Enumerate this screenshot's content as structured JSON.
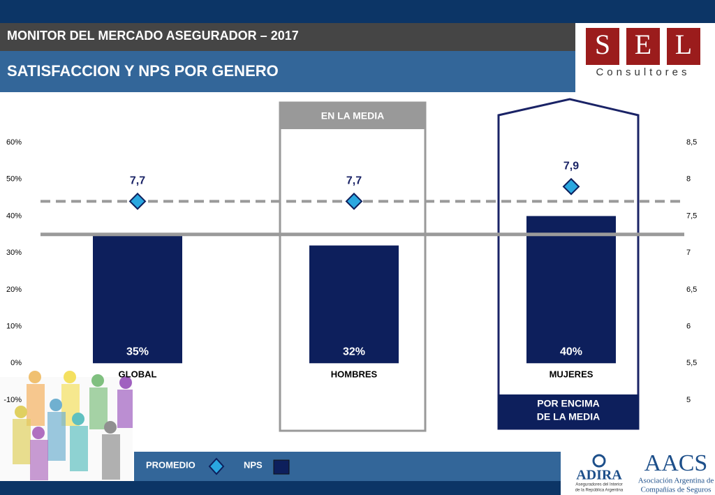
{
  "header": {
    "subtitle": "MONITOR DEL MERCADO ASEGURADOR – 2017",
    "title": "SATISFACCION Y NPS POR GENERO"
  },
  "logos": {
    "sel": {
      "letters": [
        "S",
        "E",
        "L"
      ],
      "text": "Consultores"
    },
    "adira": {
      "name": "ADIRA",
      "text": [
        "Aseguradores del Interior",
        "de la República Argentina"
      ]
    },
    "aacs": {
      "name": "AACS",
      "text": [
        "Asociación Argentina de",
        "Compañías de Seguros"
      ]
    }
  },
  "chart_data": {
    "type": "bar",
    "categories": [
      "GLOBAL",
      "HOMBRES",
      "MUJERES"
    ],
    "series": [
      {
        "name": "NPS",
        "color": "#0d1f5c",
        "values": [
          35,
          32,
          40
        ],
        "value_labels": [
          "35%",
          "32%",
          "40%"
        ]
      },
      {
        "name": "PROMEDIO",
        "type": "scatter",
        "marker": "diamond",
        "color": "#2aa7e0",
        "axis": "y2",
        "values": [
          7.7,
          7.7,
          7.9
        ],
        "value_labels": [
          "7,7",
          "7,7",
          "7,9"
        ]
      }
    ],
    "ylim": [
      -10,
      60
    ],
    "yticks": [
      {
        "value": -10,
        "label": "-10%"
      },
      {
        "value": 0,
        "label": "0%"
      },
      {
        "value": 10,
        "label": "10%"
      },
      {
        "value": 20,
        "label": "20%"
      },
      {
        "value": 30,
        "label": "30%"
      },
      {
        "value": 40,
        "label": "40%"
      },
      {
        "value": 50,
        "label": "50%"
      },
      {
        "value": 60,
        "label": "60%"
      }
    ],
    "y2lim": [
      5,
      8.5
    ],
    "y2ticks": [
      5,
      {
        "value": 5.5,
        "label": "5,5"
      },
      6,
      {
        "value": 6.5,
        "label": "6,5"
      },
      7,
      {
        "value": 7.5,
        "label": "7,5"
      },
      8,
      {
        "value": 8.5,
        "label": "8,5"
      }
    ],
    "hlines": [
      {
        "value": 35,
        "axis": "y",
        "style": "solid",
        "color": "#9a9a9a"
      },
      {
        "value": 7.7,
        "axis": "y2",
        "style": "dashed",
        "color": "#9a9a9a"
      }
    ],
    "annotations": [
      {
        "text": [
          "EN LA MEDIA"
        ]
      },
      {
        "text": [
          "POR ENCIMA",
          "DE LA MEDIA"
        ]
      }
    ],
    "grid": false,
    "legend": "bottom"
  }
}
